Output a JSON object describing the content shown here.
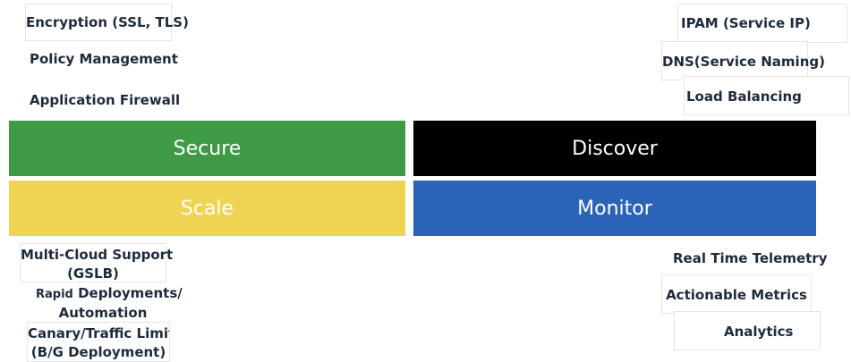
{
  "colors": {
    "secure": "#3f9a45",
    "discover": "#000000",
    "scale": "#efd454",
    "monitor": "#2b63b8",
    "label_text": "#1f2b3d"
  },
  "blocks": {
    "secure": "Secure",
    "discover": "Discover",
    "scale": "Scale",
    "monitor": "Monitor"
  },
  "secure_features": [
    "Encryption (SSL, TLS)",
    "Policy Management",
    "Application Firewall"
  ],
  "discover_features": [
    "IPAM (Service IP)",
    "DNS(Service Naming)",
    "Load Balancing"
  ],
  "scale_features": {
    "multicloud_line1": "Multi-Cloud Support",
    "multicloud_line2": "(GSLB)",
    "rapid_prefix": "Rapid",
    "rapid_line1": "Deployments/",
    "rapid_line2": "Automation",
    "canary_line1": "Canary/Traffic Limit",
    "canary_line2": "(B/G Deployment)"
  },
  "monitor_features": [
    "Real Time Telemetry",
    "Actionable Metrics",
    "Analytics"
  ]
}
